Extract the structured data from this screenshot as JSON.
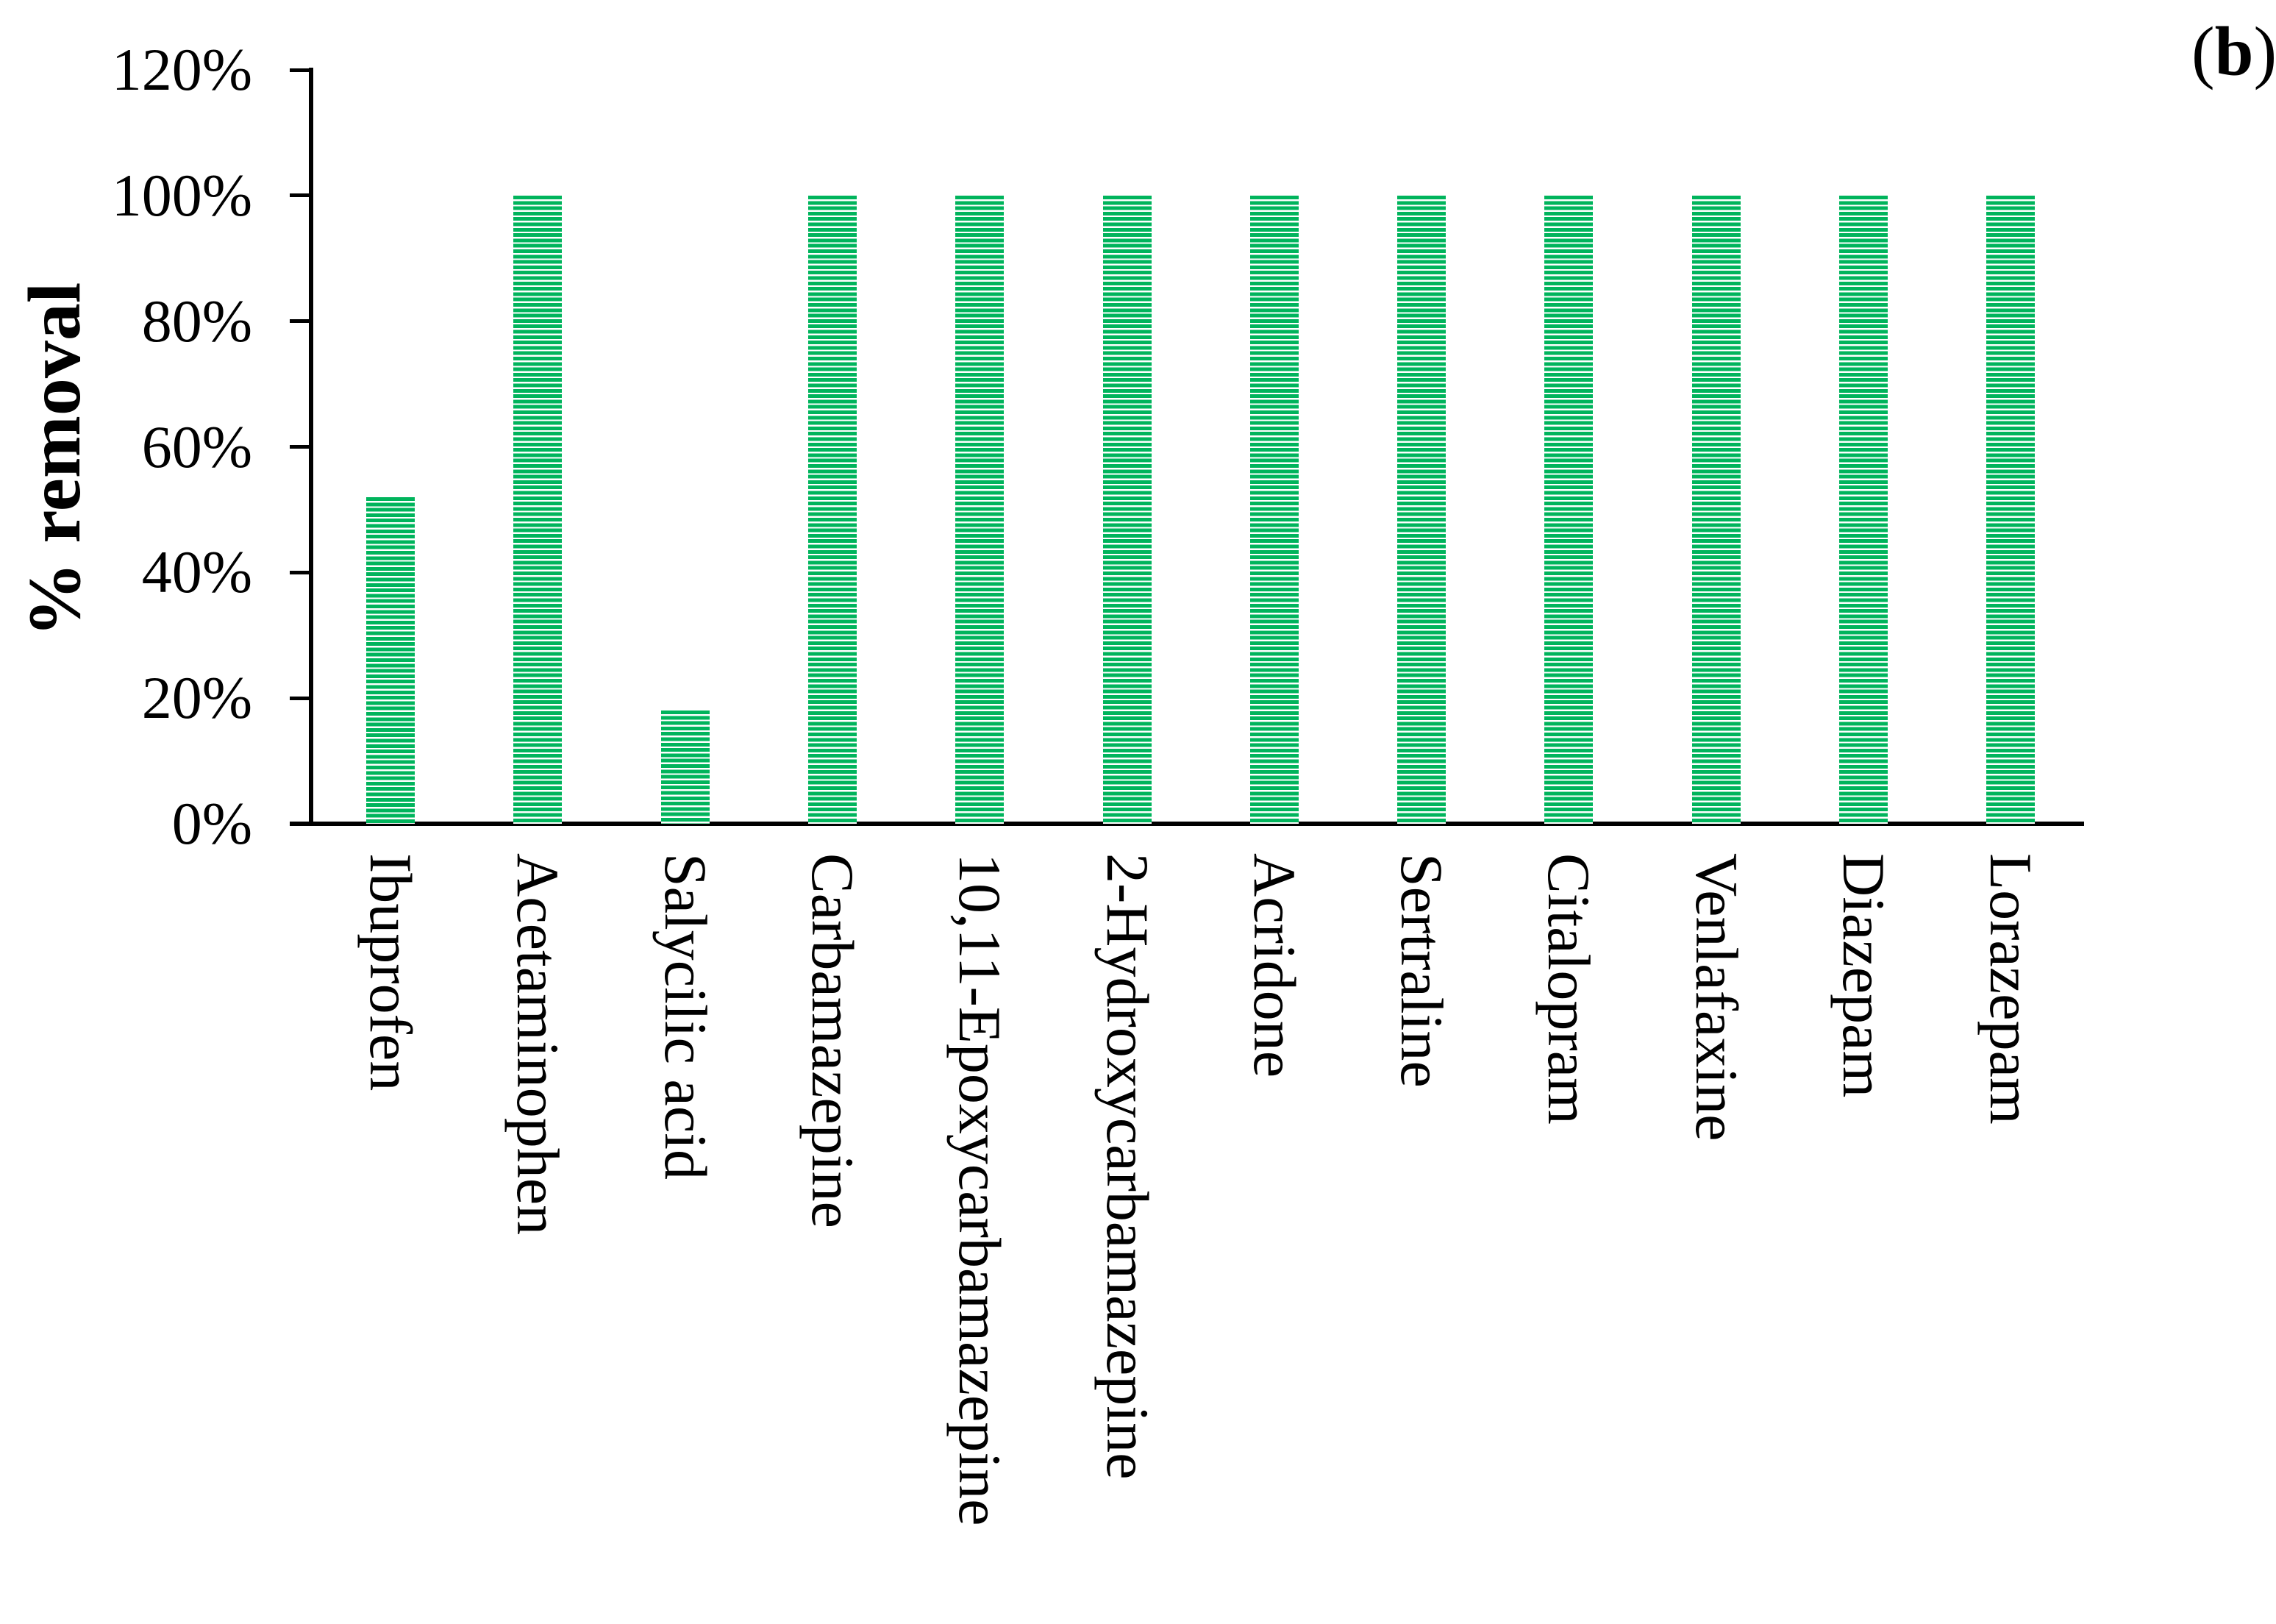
{
  "figure": {
    "panel_label": {
      "open": "(",
      "letter": "b",
      "close": ")"
    }
  },
  "chart_data": {
    "type": "bar",
    "title": "",
    "xlabel": "",
    "ylabel": "% removal",
    "categories": [
      "Ibuprofen",
      "Acetaminophen",
      "Salycilic acid",
      "Carbamazepine",
      "10,11-Epoxycarbamazepine",
      "2-Hydroxycarbamazepine",
      "Acridone",
      "Sertraline",
      "Citalopram",
      "Venlafaxine",
      "Diazepam",
      "Lorazepam"
    ],
    "values": [
      52,
      100,
      18,
      100,
      100,
      100,
      100,
      100,
      100,
      100,
      100,
      100
    ],
    "value_unit": "%",
    "y_ticks": [
      {
        "value": 120,
        "label": "120%"
      },
      {
        "value": 100,
        "label": "100%"
      },
      {
        "value": 80,
        "label": "80%"
      },
      {
        "value": 60,
        "label": "60%"
      },
      {
        "value": 40,
        "label": "40%"
      },
      {
        "value": 20,
        "label": "20%"
      },
      {
        "value": 0,
        "label": "0%"
      }
    ],
    "ylim": [
      0,
      120
    ],
    "grid": false,
    "legend": "none",
    "bar_color": "#00b45c",
    "bar_gap_color": "#ffffff",
    "bar_pattern": "horizontal-stripes",
    "axis_color": "#000000"
  }
}
